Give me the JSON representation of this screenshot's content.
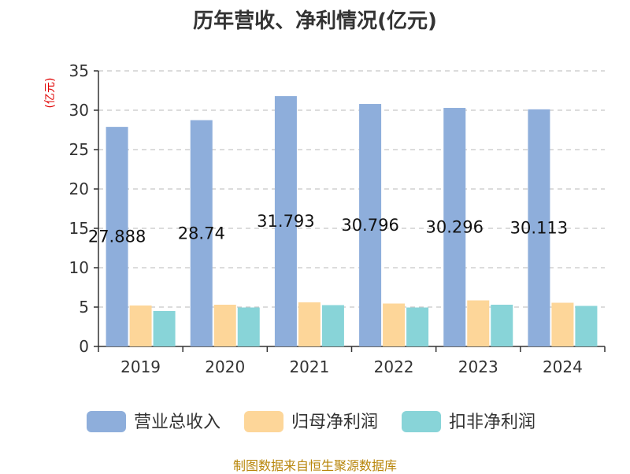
{
  "chart_data": {
    "type": "bar",
    "title": "历年营收、净利情况(亿元)",
    "ylabel": "(亿元)",
    "ylim": [
      0,
      35
    ],
    "yticks": [
      0,
      5,
      10,
      15,
      20,
      25,
      30,
      35
    ],
    "categories": [
      "2019",
      "2020",
      "2021",
      "2022",
      "2023",
      "2024"
    ],
    "series": [
      {
        "name": "营业总收入",
        "color": "#8eaedb",
        "values": [
          27.888,
          28.74,
          31.793,
          30.796,
          30.296,
          30.113
        ],
        "labels": [
          "27.888",
          "28.74",
          "31.793",
          "30.796",
          "30.296",
          "30.113"
        ]
      },
      {
        "name": "归母净利润",
        "color": "#fdd699",
        "values": [
          5.2,
          5.3,
          5.6,
          5.45,
          5.85,
          5.55
        ]
      },
      {
        "name": "扣非净利润",
        "color": "#88d4d8",
        "values": [
          4.5,
          4.95,
          5.25,
          4.95,
          5.3,
          5.15
        ]
      }
    ],
    "grid": true,
    "legend_position": "bottom"
  },
  "source": "制图数据来自恒生聚源数据库"
}
